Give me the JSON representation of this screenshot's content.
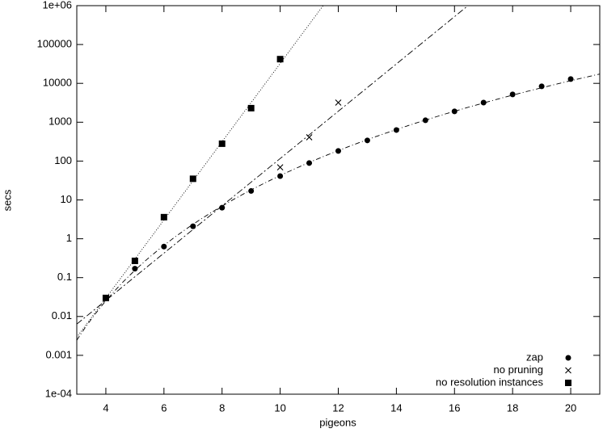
{
  "chart_data": {
    "type": "scatter",
    "xlabel": "pigeons",
    "ylabel": "secs",
    "xlim": [
      3,
      21
    ],
    "xticks": [
      4,
      6,
      8,
      10,
      12,
      14,
      16,
      18,
      20
    ],
    "ylim": [
      0.0001,
      1000000
    ],
    "ylog": true,
    "yticks": [
      {
        "value": 0.0001,
        "label": "1e-04"
      },
      0.001,
      0.01,
      0.1,
      1,
      10,
      100,
      1000,
      10000,
      100000,
      {
        "value": 1000000,
        "label": "1e+06"
      }
    ],
    "legend": "lower right",
    "series": [
      {
        "name": "zap",
        "color": "#000000",
        "marker": "circle",
        "fit": "power",
        "x": [
          4,
          5,
          6,
          7,
          8,
          9,
          10,
          11,
          12,
          13,
          14,
          15,
          16,
          17,
          18,
          19,
          20
        ],
        "values": [
          0.03,
          0.17,
          0.63,
          2.1,
          6.3,
          17,
          41,
          89,
          182,
          340,
          630,
          1120,
          1900,
          3200,
          5200,
          8400,
          12900
        ]
      },
      {
        "name": "no pruning",
        "color": "#000000",
        "marker": "x",
        "fit": "exponential",
        "x": [
          4,
          10,
          11,
          12
        ],
        "values": [
          0.03,
          69,
          410,
          3200
        ]
      },
      {
        "name": "no resolution instances",
        "color": "#000000",
        "marker": "square",
        "fit": "exponential",
        "x": [
          4,
          5,
          6,
          7,
          8,
          9,
          10
        ],
        "values": [
          0.03,
          0.27,
          3.6,
          35,
          280,
          2300,
          42000
        ]
      }
    ]
  }
}
